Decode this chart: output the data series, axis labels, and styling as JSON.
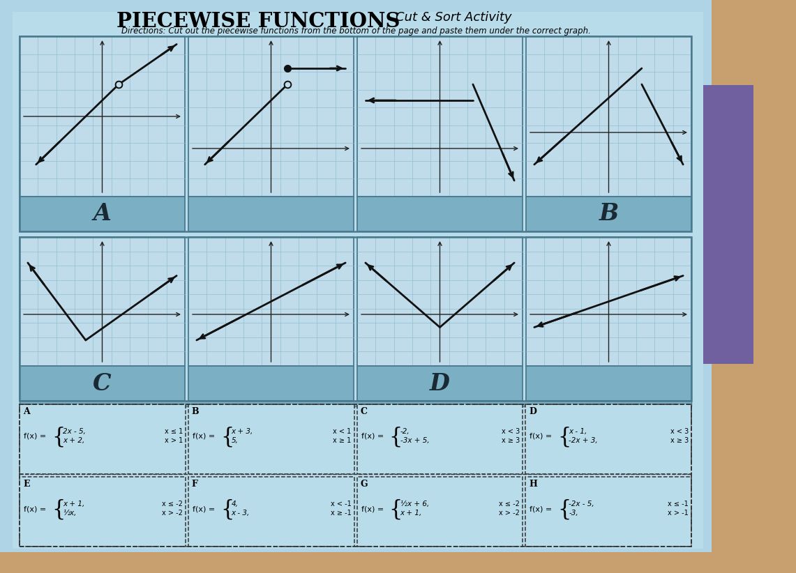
{
  "title": "PIECEWISE FUNCTIONS",
  "subtitle": "Cut & Sort Activity",
  "directions": "Directions: Cut out the piecewise functions from the bottom of the page and paste them under the correct graph.",
  "bg_color": "#aed4e6",
  "paper_color": "#b8dcea",
  "graph_bg": "#c0dcea",
  "graph_grid_color": "#8bbcce",
  "label_bar_color": "#7aafc4",
  "outer_border_color": "#4a7a90",
  "line_color": "#111111",
  "wood_color": "#c8a070",
  "purple_color": "#7060a0",
  "row1_graphs": [
    {
      "segments": [
        {
          "x": [
            -4,
            1
          ],
          "y": [
            -3,
            2
          ],
          "arrow_start": true,
          "closed_end": true
        },
        {
          "x": [
            1,
            4.5
          ],
          "y": [
            2,
            4.5
          ],
          "arrow_end": true,
          "open_start": true
        }
      ],
      "xr": [
        -5,
        5
      ],
      "yr": [
        -5,
        5
      ]
    },
    {
      "segments": [
        {
          "x": [
            -4,
            1
          ],
          "y": [
            -1,
            4
          ],
          "arrow_start": true,
          "open_end": true
        },
        {
          "x": [
            1,
            4.5
          ],
          "y": [
            5,
            5
          ],
          "arrow_end": true,
          "closed_start": true
        }
      ],
      "xr": [
        -5,
        5
      ],
      "yr": [
        -3,
        7
      ]
    },
    {
      "segments": [
        {
          "x": [
            -4.5,
            2
          ],
          "y": [
            3,
            3
          ],
          "arrow_start": true,
          "open_end": false
        },
        {
          "x": [
            2,
            4.5
          ],
          "y": [
            4,
            -2
          ],
          "arrow_end": true,
          "open_start": false
        }
      ],
      "xr": [
        -5,
        5
      ],
      "yr": [
        -3,
        7
      ]
    },
    {
      "segments": [
        {
          "x": [
            -4.5,
            2
          ],
          "y": [
            -2,
            4
          ],
          "arrow_start": true,
          "open_end": false
        },
        {
          "x": [
            2,
            4.5
          ],
          "y": [
            3,
            -2
          ],
          "arrow_end": true,
          "open_start": false
        }
      ],
      "xr": [
        -5,
        5
      ],
      "yr": [
        -4,
        6
      ]
    }
  ],
  "row1_labels": [
    "A",
    "",
    "",
    "B"
  ],
  "row2_graphs": [
    {
      "segments": [
        {
          "x": [
            -4.5,
            -1
          ],
          "y": [
            4,
            -2
          ],
          "arrow_start": true,
          "closed_end": false
        },
        {
          "x": [
            -1,
            4.5
          ],
          "y": [
            -2,
            3
          ],
          "arrow_end": true,
          "open_start": false
        }
      ],
      "xr": [
        -5,
        5
      ],
      "yr": [
        -4,
        6
      ]
    },
    {
      "segments": [
        {
          "x": [
            -4.5,
            4.5
          ],
          "y": [
            -2,
            4
          ],
          "arrow_start": true,
          "arrow_end": true
        }
      ],
      "xr": [
        -5,
        5
      ],
      "yr": [
        -4,
        6
      ]
    },
    {
      "segments": [
        {
          "x": [
            -4.5,
            0
          ],
          "y": [
            4,
            -1
          ],
          "arrow_start": true,
          "closed_end": false
        },
        {
          "x": [
            0,
            4.5
          ],
          "y": [
            -1,
            4
          ],
          "arrow_end": true,
          "open_start": false
        }
      ],
      "xr": [
        -5,
        5
      ],
      "yr": [
        -4,
        6
      ]
    },
    {
      "segments": [
        {
          "x": [
            -4.5,
            4.5
          ],
          "y": [
            -1,
            3
          ],
          "arrow_start": true,
          "arrow_end": true
        }
      ],
      "xr": [
        -5,
        5
      ],
      "yr": [
        -4,
        6
      ]
    }
  ],
  "row2_labels": [
    "C",
    "",
    "D",
    ""
  ],
  "cut_cards_row1": [
    {
      "label": "A",
      "f1": "2x - 5,",
      "c1": "x ≤ 1",
      "f2": "x + 2,",
      "c2": "x > 1"
    },
    {
      "label": "B",
      "f1": "x + 3,",
      "c1": "x < 1",
      "f2": "5,",
      "c2": "x ≥ 1"
    },
    {
      "label": "C",
      "f1": "-2,",
      "c1": "x < 3",
      "f2": "-3x + 5,",
      "c2": "x ≥ 3"
    },
    {
      "label": "D",
      "f1": "x - 1,",
      "c1": "x < 3",
      "f2": "-2x + 3,",
      "c2": "x ≥ 3"
    }
  ],
  "cut_cards_row2": [
    {
      "label": "E",
      "f1": "x + 1,",
      "c1": "x ≤ -2",
      "f2": "½x,",
      "c2": "x > -2"
    },
    {
      "label": "F",
      "f1": "4,",
      "c1": "x < -1",
      "f2": "x - 3,",
      "c2": "x ≥ -1"
    },
    {
      "label": "G",
      "f1": "½x + 6,",
      "c1": "x ≤ -2",
      "f2": "x + 1,",
      "c2": "x > -2"
    },
    {
      "label": "H",
      "f1": "-2x - 5,",
      "c1": "x ≤ -1",
      "f2": "-3,",
      "c2": "x > -1"
    }
  ]
}
